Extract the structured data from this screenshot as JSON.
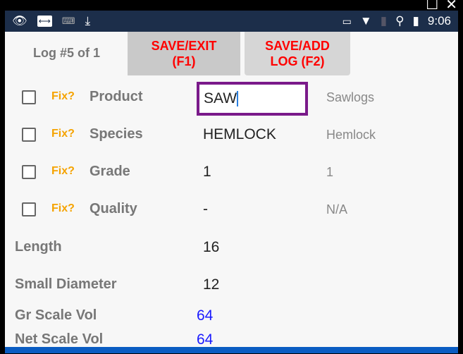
{
  "status_bar": {
    "time": "9:06",
    "left_icons": [
      "eye-icon",
      "teamviewer-icon",
      "keyboard-icon",
      "download-icon"
    ],
    "right_icons": [
      "cast-icon",
      "wifi-icon",
      "no-sim-icon",
      "location-icon",
      "battery-icon"
    ]
  },
  "header": {
    "log_label": "Log #5 of 1",
    "save_exit": "SAVE/EXIT",
    "save_exit_key": "(F1)",
    "save_add": "SAVE/ADD",
    "save_add_key": "LOG (F2)"
  },
  "fields": [
    {
      "fix": "Fix?",
      "label": "Product",
      "value": "SAW",
      "desc": "Sawlogs"
    },
    {
      "fix": "Fix?",
      "label": "Species",
      "value": "HEMLOCK",
      "desc": "Hemlock"
    },
    {
      "fix": "Fix?",
      "label": "Grade",
      "value": "1",
      "desc": "1"
    },
    {
      "fix": "Fix?",
      "label": "Quality",
      "value": "-",
      "desc": "N/A"
    }
  ],
  "length": {
    "label": "Length",
    "value": "16"
  },
  "small_diameter": {
    "label": "Small Diameter",
    "value": "12"
  },
  "gr_scale_vol": {
    "label": "Gr Scale Vol",
    "value": "64"
  },
  "net_scale_vol": {
    "label": "Net Scale Vol",
    "value": "64"
  },
  "colors": {
    "status_bar": "#1c2e4a",
    "button_text": "#ff0000",
    "fix": "#f5a300",
    "volume": "#1a1aff",
    "input_border": "#7a1a8a"
  }
}
